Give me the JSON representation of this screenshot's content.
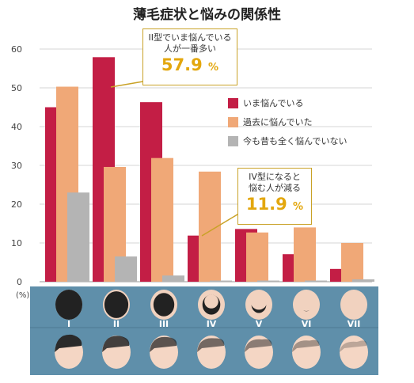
{
  "title": "薄毛症状と悩みの関係性",
  "unit_label": "(%)",
  "colors": {
    "now": "#c31e45",
    "past": "#f0a877",
    "never": "#b4b4b4",
    "band": "#5f8faa"
  },
  "callout_top": {
    "line1": "II型でいま悩んでいる",
    "line2": "人が一番多い",
    "value": "57.9",
    "unit": "%"
  },
  "callout_mid": {
    "line1": "IV型になると",
    "line2": "悩む人が減る",
    "value": "11.9",
    "unit": "%"
  },
  "chart_data": {
    "type": "bar",
    "categories": [
      "I",
      "II",
      "III",
      "IV",
      "V",
      "VI",
      "VII"
    ],
    "series": [
      {
        "name": "いま悩んでいる",
        "values": [
          45,
          57.9,
          46.3,
          11.9,
          13.6,
          7.1,
          3.3
        ]
      },
      {
        "name": "過去に悩んでいた",
        "values": [
          50.3,
          29.6,
          31.9,
          28.4,
          12.7,
          14.0,
          10.0
        ]
      },
      {
        "name": "今も昔も全く悩んでいない",
        "values": [
          23.0,
          6.5,
          1.6,
          0.3,
          0.3,
          0.3,
          0.6
        ]
      }
    ],
    "yticks": [
      0,
      10,
      20,
      30,
      40,
      50,
      60
    ],
    "ylim": [
      0,
      60
    ],
    "grid": true,
    "legend": "right"
  }
}
